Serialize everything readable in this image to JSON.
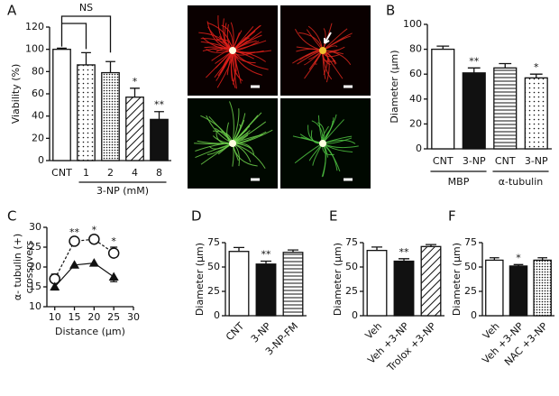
{
  "chart_data": [
    {
      "type": "bar",
      "panel": "A",
      "ylabel": "Viability (%)",
      "xlabel": "3-NP (mM)",
      "bracket_label": "NS",
      "categories": [
        "CNT",
        "1",
        "2",
        "4",
        "8"
      ],
      "values": [
        100,
        86,
        79,
        57,
        37
      ],
      "errors": [
        1,
        11,
        10,
        8,
        7
      ],
      "annotations": [
        null,
        null,
        null,
        "*",
        "**"
      ],
      "fills": [
        "white",
        "dots",
        "dense-dots",
        "hatch",
        "black"
      ],
      "ylim": [
        0,
        120
      ],
      "yticks": [
        0,
        20,
        40,
        60,
        80,
        100,
        120
      ]
    },
    {
      "type": "bar",
      "panel": "B",
      "ylabel": "Diameter (μm)",
      "categories": [
        "CNT",
        "3-NP",
        "CNT",
        "3-NP"
      ],
      "values": [
        80,
        61,
        65,
        57
      ],
      "errors": [
        2.5,
        4,
        3.5,
        3
      ],
      "annotations": [
        null,
        "**",
        null,
        "*"
      ],
      "fills": [
        "white",
        "black",
        "hlines",
        "dots"
      ],
      "groups": [
        {
          "name": "MBP",
          "size": 2
        },
        {
          "name": "α-tubulin",
          "size": 2
        }
      ],
      "ylim": [
        0,
        100
      ],
      "yticks": [
        0,
        20,
        40,
        60,
        80,
        100
      ]
    },
    {
      "type": "line",
      "panel": "C",
      "ylabel": [
        "α- tubulin (+)",
        "crossovers"
      ],
      "xlabel": "Distance (μm)",
      "x": [
        10,
        15,
        20,
        25
      ],
      "series": [
        {
          "marker": "open-circle",
          "dashed": true,
          "values": [
            17,
            26.5,
            27,
            23.5
          ],
          "errors": [
            1.2,
            0.8,
            0.8,
            1.5
          ],
          "annotations": [
            null,
            "**",
            "*",
            "*"
          ]
        },
        {
          "marker": "filled-triangle",
          "dashed": false,
          "values": [
            15,
            20.5,
            21,
            17.5
          ],
          "errors": [
            0.8,
            0.5,
            0.5,
            1.2
          ]
        }
      ],
      "xlim": [
        8,
        30
      ],
      "xticks": [
        10,
        15,
        20,
        25,
        30
      ],
      "ylim": [
        10,
        30
      ],
      "yticks": [
        10,
        15,
        20,
        25,
        30
      ]
    },
    {
      "type": "bar",
      "panel": "D",
      "ylabel": "Diameter (μm)",
      "label_rotation": -45,
      "categories": [
        "CNT",
        "3-NP",
        "3-NP-FM"
      ],
      "values": [
        66,
        53,
        65
      ],
      "errors": [
        4,
        3,
        2.5
      ],
      "annotations": [
        null,
        "**",
        null
      ],
      "fills": [
        "white",
        "black",
        "hlines"
      ],
      "ylim": [
        0,
        75
      ],
      "yticks": [
        0,
        25,
        50,
        75
      ]
    },
    {
      "type": "bar",
      "panel": "E",
      "ylabel": "Diameter (μm)",
      "label_rotation": -45,
      "categories": [
        "Veh",
        "Veh +3-NP",
        "Trolox +3-NP"
      ],
      "values": [
        67,
        56,
        71
      ],
      "errors": [
        3.5,
        2.5,
        2
      ],
      "annotations": [
        null,
        "**",
        null
      ],
      "fills": [
        "white",
        "black",
        "hatch"
      ],
      "ylim": [
        0,
        75
      ],
      "yticks": [
        0,
        25,
        50,
        75
      ]
    },
    {
      "type": "bar",
      "panel": "F",
      "ylabel": "Diameter (μm)",
      "label_rotation": -45,
      "categories": [
        "Veh",
        "Veh +3-NP",
        "NAC +3-NP"
      ],
      "values": [
        57,
        51,
        57
      ],
      "errors": [
        2.5,
        1.5,
        2.5
      ],
      "annotations": [
        null,
        "*",
        null
      ],
      "fills": [
        "white",
        "black",
        "dense-dots"
      ],
      "ylim": [
        0,
        75
      ],
      "yticks": [
        0,
        25,
        50,
        75
      ]
    }
  ]
}
